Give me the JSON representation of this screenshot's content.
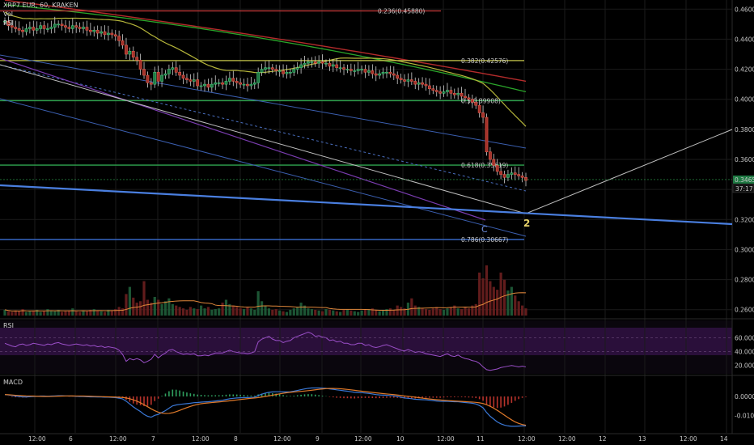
{
  "header": {
    "symbol": "XRP7 EUR, 60, KRAKEN",
    "vol_label": "Vol",
    "third_label": "RSI"
  },
  "panels": {
    "rsi_label": "RSI",
    "macd_label": "MACD"
  },
  "colors": {
    "up": "#2e8b57",
    "down": "#c0392b",
    "fib_yellow": "#c6c64a",
    "fib_green": "#2fa44f",
    "fib_red": "#c93b3b",
    "fib_blue": "#3b6fd4",
    "rsi_fill": "#2a0f3a"
  },
  "fib_levels": [
    {
      "label": "0.236(0.45880)",
      "price": 0.4588,
      "color": "#c93b3b"
    },
    {
      "label": "0.382(0.42576)",
      "price": 0.42576,
      "color": "#c6c64a"
    },
    {
      "label": "0.5(0.39908)",
      "price": 0.39908,
      "color": "#2fa44f"
    },
    {
      "label": "0.618(0.35619)",
      "price": 0.35619,
      "color": "#2fa44f"
    },
    {
      "label": "0.786(0.30667)",
      "price": 0.30667,
      "color": "#3b6fd4"
    }
  ],
  "markers": {
    "c_label": "C",
    "two_label": "2"
  },
  "chart_data": [
    {
      "type": "candlestick",
      "title": "XRP7 EUR, 60, KRAKEN",
      "y_axis_ticks": [
        "0.46000",
        "0.44000",
        "0.42000",
        "0.40000",
        "0.38000",
        "0.36000",
        "0.34000",
        "0.32000",
        "0.30000",
        "0.28000",
        "0.26000"
      ],
      "ylim": [
        0.255,
        0.465
      ],
      "x_ticks": [
        "12:00",
        "6",
        "12:00",
        "7",
        "12:00",
        "8",
        "12:00",
        "9",
        "12:00",
        "10",
        "12:00",
        "11",
        "12:00",
        "12:00",
        "12",
        "13",
        "12:00",
        "14"
      ],
      "last_price": "0.34657",
      "countdown": "37:17",
      "close_path": [
        0.452,
        0.449,
        0.448,
        0.447,
        0.446,
        0.445,
        0.447,
        0.448,
        0.446,
        0.447,
        0.449,
        0.447,
        0.447,
        0.448,
        0.45,
        0.45,
        0.449,
        0.448,
        0.447,
        0.449,
        0.448,
        0.447,
        0.448,
        0.446,
        0.445,
        0.446,
        0.444,
        0.445,
        0.443,
        0.444,
        0.443,
        0.442,
        0.439,
        0.436,
        0.43,
        0.432,
        0.428,
        0.426,
        0.42,
        0.416,
        0.411,
        0.41,
        0.418,
        0.412,
        0.416,
        0.417,
        0.42,
        0.421,
        0.418,
        0.416,
        0.414,
        0.413,
        0.412,
        0.413,
        0.409,
        0.409,
        0.41,
        0.408,
        0.41,
        0.411,
        0.411,
        0.41,
        0.412,
        0.414,
        0.412,
        0.411,
        0.41,
        0.41,
        0.409,
        0.41,
        0.411,
        0.418,
        0.42,
        0.421,
        0.421,
        0.42,
        0.419,
        0.419,
        0.417,
        0.418,
        0.418,
        0.42,
        0.421,
        0.423,
        0.424,
        0.425,
        0.425,
        0.424,
        0.425,
        0.424,
        0.424,
        0.422,
        0.423,
        0.421,
        0.421,
        0.42,
        0.42,
        0.419,
        0.419,
        0.42,
        0.42,
        0.418,
        0.419,
        0.417,
        0.416,
        0.417,
        0.418,
        0.418,
        0.417,
        0.416,
        0.414,
        0.413,
        0.412,
        0.413,
        0.412,
        0.41,
        0.411,
        0.41,
        0.409,
        0.407,
        0.406,
        0.405,
        0.404,
        0.405,
        0.406,
        0.404,
        0.403,
        0.404,
        0.402,
        0.401,
        0.4,
        0.398,
        0.396,
        0.391,
        0.388,
        0.365,
        0.36,
        0.356,
        0.352,
        0.35,
        0.348,
        0.35,
        0.351,
        0.35,
        0.349,
        0.348,
        0.346
      ],
      "volume_scale": [
        8,
        6,
        5,
        7,
        6,
        9,
        5,
        6,
        7,
        8,
        5,
        6,
        9,
        7,
        6,
        8,
        5,
        6,
        7,
        10,
        6,
        5,
        7,
        6,
        8,
        9,
        7,
        6,
        5,
        8,
        7,
        9,
        12,
        10,
        30,
        40,
        25,
        18,
        20,
        48,
        22,
        18,
        26,
        22,
        16,
        20,
        24,
        16,
        14,
        12,
        10,
        8,
        12,
        10,
        9,
        14,
        10,
        12,
        8,
        9,
        10,
        18,
        22,
        16,
        14,
        12,
        10,
        9,
        12,
        10,
        8,
        34,
        20,
        14,
        10,
        8,
        9,
        7,
        6,
        5,
        8,
        10,
        12,
        18,
        14,
        10,
        9,
        8,
        7,
        6,
        9,
        8,
        7,
        6,
        5,
        8,
        9,
        7,
        6,
        5,
        7,
        8,
        9,
        10,
        8,
        6,
        7,
        9,
        10,
        8,
        14,
        12,
        10,
        18,
        24,
        14,
        12,
        10,
        9,
        8,
        10,
        12,
        9,
        8,
        10,
        12,
        14,
        10,
        9,
        12,
        10,
        14,
        16,
        60,
        52,
        70,
        48,
        40,
        36,
        60,
        50,
        35,
        40,
        28,
        20,
        14,
        10
      ],
      "rsi_values": [
        52,
        50,
        48,
        47,
        50,
        51,
        49,
        50,
        52,
        51,
        50,
        49,
        51,
        50,
        52,
        53,
        51,
        50,
        49,
        50,
        51,
        50,
        49,
        50,
        48,
        49,
        47,
        48,
        46,
        47,
        46,
        45,
        42,
        36,
        26,
        30,
        28,
        30,
        28,
        24,
        26,
        29,
        36,
        31,
        35,
        38,
        42,
        43,
        40,
        38,
        36,
        37,
        36,
        37,
        34,
        34,
        35,
        34,
        36,
        38,
        38,
        38,
        40,
        42,
        40,
        39,
        38,
        38,
        37,
        38,
        40,
        54,
        58,
        60,
        62,
        58,
        56,
        56,
        53,
        55,
        56,
        60,
        62,
        64,
        66,
        68,
        66,
        62,
        63,
        61,
        60,
        56,
        57,
        54,
        55,
        52,
        52,
        50,
        50,
        52,
        52,
        49,
        50,
        47,
        46,
        47,
        49,
        50,
        48,
        46,
        44,
        42,
        41,
        43,
        41,
        39,
        40,
        39,
        37,
        36,
        35,
        34,
        33,
        35,
        37,
        34,
        33,
        35,
        32,
        30,
        29,
        27,
        26,
        23,
        18,
        14,
        13,
        14,
        15,
        17,
        18,
        19,
        20,
        19,
        18,
        19,
        18
      ],
      "macd_line": [
        0.001,
        0.0008,
        0.0005,
        0.0002,
        0.0,
        -0.0002,
        -0.0003,
        -0.0001,
        0.0,
        0.0001,
        0.0002,
        0.0002,
        0.0001,
        0.0002,
        0.0003,
        0.0004,
        0.0004,
        0.0003,
        0.0002,
        0.0002,
        0.0001,
        0.0,
        0.0,
        -0.0001,
        -0.0002,
        -0.0002,
        -0.0003,
        -0.0003,
        -0.0004,
        -0.0004,
        -0.0005,
        -0.0006,
        -0.0009,
        -0.0013,
        -0.0025,
        -0.004,
        -0.0055,
        -0.0068,
        -0.008,
        -0.0095,
        -0.0105,
        -0.011,
        -0.01,
        -0.0095,
        -0.0085,
        -0.0075,
        -0.0062,
        -0.005,
        -0.0045,
        -0.0042,
        -0.004,
        -0.0038,
        -0.0036,
        -0.0033,
        -0.0032,
        -0.003,
        -0.0029,
        -0.0028,
        -0.0026,
        -0.0024,
        -0.0022,
        -0.002,
        -0.0016,
        -0.0012,
        -0.001,
        -0.0008,
        -0.0007,
        -0.0006,
        -0.0006,
        -0.0005,
        -0.0004,
        0.0005,
        0.0012,
        0.0018,
        0.0022,
        0.0024,
        0.0025,
        0.0025,
        0.0024,
        0.0024,
        0.0025,
        0.0028,
        0.0032,
        0.0036,
        0.004,
        0.0043,
        0.0045,
        0.0045,
        0.0045,
        0.0044,
        0.0043,
        0.004,
        0.0038,
        0.0035,
        0.0033,
        0.003,
        0.0028,
        0.0025,
        0.0022,
        0.0021,
        0.002,
        0.0018,
        0.0016,
        0.0013,
        0.001,
        0.0008,
        0.0007,
        0.0006,
        0.0005,
        0.0003,
        0.0,
        -0.0004,
        -0.0008,
        -0.001,
        -0.0012,
        -0.0015,
        -0.0016,
        -0.0017,
        -0.0018,
        -0.002,
        -0.0022,
        -0.0024,
        -0.0026,
        -0.0026,
        -0.0026,
        -0.0027,
        -0.0028,
        -0.0028,
        -0.003,
        -0.0032,
        -0.0034,
        -0.0036,
        -0.004,
        -0.0048,
        -0.006,
        -0.0085,
        -0.0105,
        -0.012,
        -0.0135,
        -0.0145,
        -0.0152,
        -0.0156,
        -0.0158,
        -0.0158,
        -0.0157,
        -0.0156,
        -0.0156
      ],
      "macd_ticks": [
        "0.0000",
        "-0.0100"
      ],
      "rsi_ticks": [
        "60.000",
        "40.000",
        "20.000"
      ]
    }
  ]
}
